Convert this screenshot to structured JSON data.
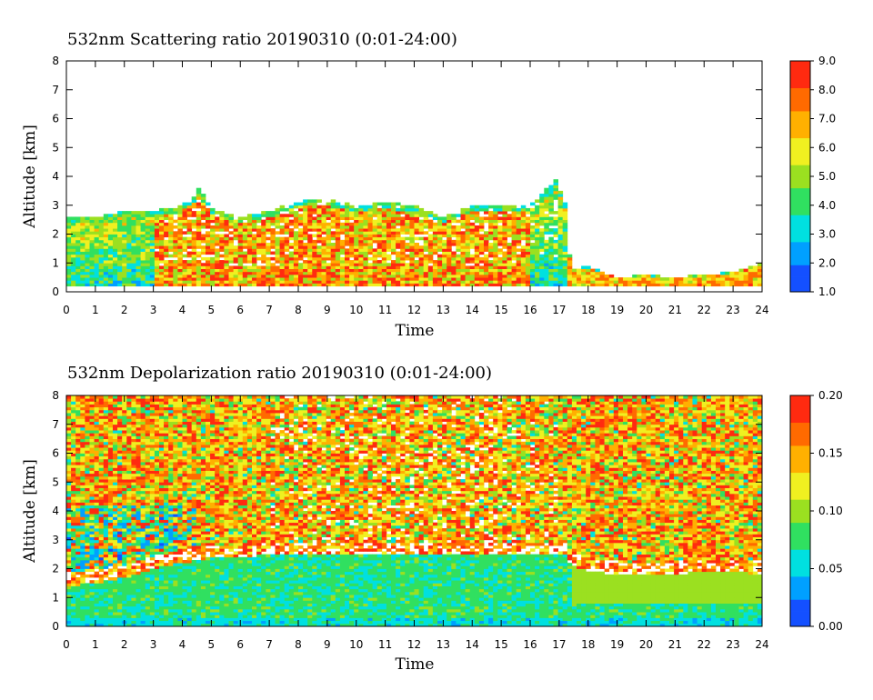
{
  "chart_data": [
    {
      "type": "heatmap",
      "title": "532nm Scattering ratio  20190310 (0:01-24:00)",
      "xlabel": "Time",
      "ylabel": "Altitude [km]",
      "xlim": [
        0,
        24
      ],
      "ylim": [
        0,
        8
      ],
      "x_ticks": [
        "0",
        "1",
        "2",
        "3",
        "4",
        "5",
        "6",
        "7",
        "8",
        "9",
        "10",
        "11",
        "12",
        "13",
        "14",
        "15",
        "16",
        "17",
        "18",
        "19",
        "20",
        "21",
        "22",
        "23",
        "24"
      ],
      "y_ticks": [
        "0",
        "1",
        "2",
        "3",
        "4",
        "5",
        "6",
        "7",
        "8"
      ],
      "colorbar": {
        "range": [
          1.0,
          9.0
        ],
        "ticks": [
          "1.0",
          "2.0",
          "3.0",
          "4.0",
          "5.0",
          "6.0",
          "7.0",
          "8.0",
          "9.0"
        ],
        "colormap": [
          "#1450ff",
          "#00a0ff",
          "#00e0e0",
          "#30e060",
          "#9be020",
          "#f0f020",
          "#ffb000",
          "#ff6a00",
          "#ff2a10"
        ]
      },
      "cloud_top_km": [
        [
          0.0,
          2.6
        ],
        [
          1.0,
          2.6
        ],
        [
          2.0,
          2.8
        ],
        [
          3.0,
          2.8
        ],
        [
          4.0,
          3.0
        ],
        [
          4.6,
          3.6
        ],
        [
          5.0,
          2.9
        ],
        [
          6.0,
          2.6
        ],
        [
          7.0,
          2.8
        ],
        [
          8.0,
          3.2
        ],
        [
          9.0,
          3.2
        ],
        [
          10.0,
          3.0
        ],
        [
          11.0,
          3.1
        ],
        [
          12.0,
          3.0
        ],
        [
          13.0,
          2.6
        ],
        [
          14.0,
          3.0
        ],
        [
          15.0,
          3.0
        ],
        [
          16.0,
          3.0
        ],
        [
          16.9,
          3.9
        ],
        [
          17.2,
          3.1
        ],
        [
          17.4,
          0.8
        ],
        [
          18.0,
          0.9
        ],
        [
          19.0,
          0.5
        ],
        [
          20.0,
          0.6
        ],
        [
          21.0,
          0.5
        ],
        [
          22.0,
          0.6
        ],
        [
          23.0,
          0.7
        ],
        [
          24.0,
          1.0
        ]
      ]
    },
    {
      "type": "heatmap",
      "title": "532nm Depolarization ratio  20190310 (0:01-24:00)",
      "xlabel": "Time",
      "ylabel": "Altitude [km]",
      "xlim": [
        0,
        24
      ],
      "ylim": [
        0,
        8
      ],
      "x_ticks": [
        "0",
        "1",
        "2",
        "3",
        "4",
        "5",
        "6",
        "7",
        "8",
        "9",
        "10",
        "11",
        "12",
        "13",
        "14",
        "15",
        "16",
        "17",
        "18",
        "19",
        "20",
        "21",
        "22",
        "23",
        "24"
      ],
      "y_ticks": [
        "0",
        "1",
        "2",
        "3",
        "4",
        "5",
        "6",
        "7",
        "8"
      ],
      "colorbar": {
        "range": [
          0.0,
          0.2
        ],
        "ticks": [
          "0.00",
          "0.05",
          "0.10",
          "0.15",
          "0.20"
        ],
        "colormap": [
          "#1450ff",
          "#00a0ff",
          "#00e0e0",
          "#30e060",
          "#9be020",
          "#f0f020",
          "#ffb000",
          "#ff6a00",
          "#ff2a10"
        ]
      },
      "boundary_layer_top_km": [
        [
          0.0,
          1.5
        ],
        [
          1.0,
          1.6
        ],
        [
          2.0,
          1.8
        ],
        [
          3.0,
          2.1
        ],
        [
          4.0,
          2.3
        ],
        [
          5.0,
          2.5
        ],
        [
          6.0,
          2.5
        ],
        [
          7.0,
          2.6
        ],
        [
          8.0,
          2.6
        ],
        [
          9.0,
          2.6
        ],
        [
          10.0,
          2.6
        ],
        [
          11.0,
          2.6
        ],
        [
          12.0,
          2.6
        ],
        [
          13.0,
          2.6
        ],
        [
          14.0,
          2.6
        ],
        [
          15.0,
          2.6
        ],
        [
          16.0,
          2.6
        ],
        [
          17.2,
          2.6
        ],
        [
          17.4,
          2.2
        ],
        [
          18.0,
          2.0
        ],
        [
          19.0,
          1.9
        ],
        [
          20.0,
          1.9
        ],
        [
          21.0,
          1.9
        ],
        [
          22.0,
          2.0
        ],
        [
          23.0,
          2.0
        ],
        [
          24.0,
          1.9
        ]
      ]
    }
  ]
}
